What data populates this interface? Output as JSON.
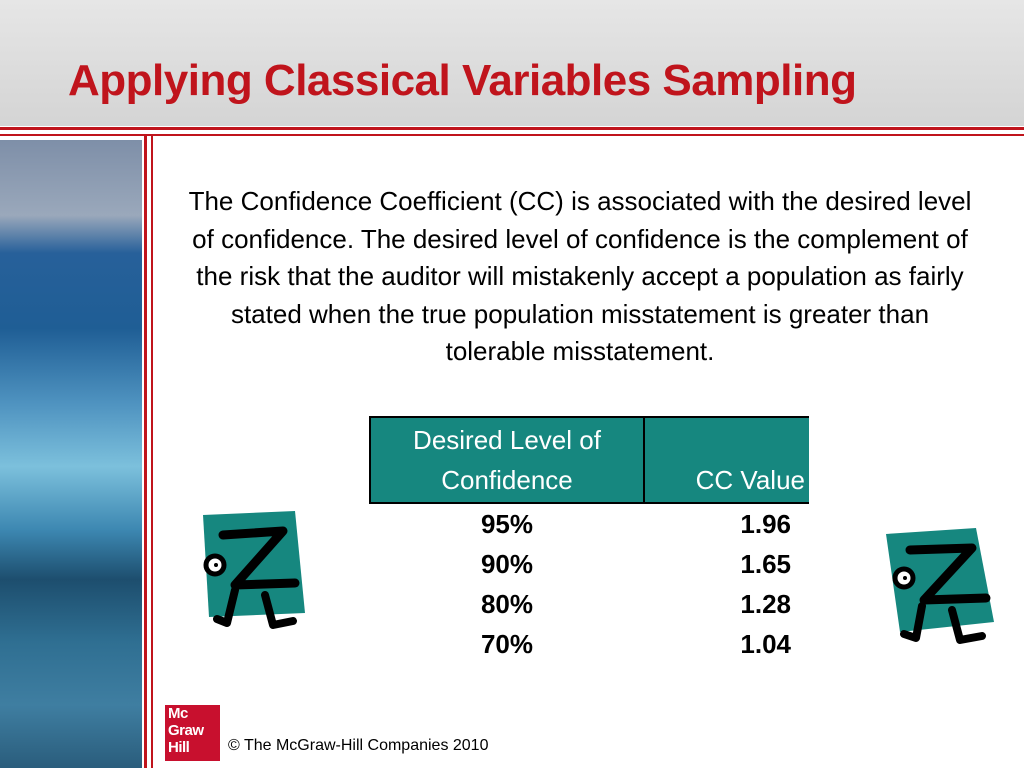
{
  "header": {
    "title": "Applying Classical Variables Sampling"
  },
  "body": {
    "paragraph": "The Confidence Coefficient (CC) is associated with the desired level of confidence. The desired level of confidence is the complement of the risk that the auditor will mistakenly accept a population as fairly stated when the true population misstatement is greater than tolerable misstatement."
  },
  "table": {
    "columns": [
      "Desired Level of Confidence",
      "CC Value"
    ],
    "rows": [
      [
        "95%",
        "1.96"
      ],
      [
        "90%",
        "1.65"
      ],
      [
        "80%",
        "1.28"
      ],
      [
        "70%",
        "1.04"
      ]
    ]
  },
  "footer": {
    "logo": [
      "Mc",
      "Graw",
      "Hill"
    ],
    "copyright": "© The McGraw-Hill Companies 2010"
  }
}
